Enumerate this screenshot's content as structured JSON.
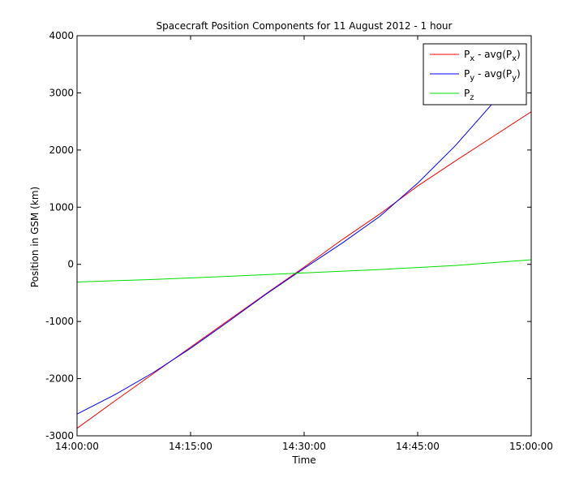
{
  "chart_data": {
    "type": "line",
    "title": "Spacecraft Position Components for 11 August 2012 - 1 hour",
    "xlabel": "Time",
    "ylabel": "Position in GSM (km)",
    "xlim": [
      0,
      60
    ],
    "ylim": [
      -3000,
      4000
    ],
    "x_ticks": [
      {
        "value": 0,
        "label": "14:00:00"
      },
      {
        "value": 15,
        "label": "14:15:00"
      },
      {
        "value": 30,
        "label": "14:30:00"
      },
      {
        "value": 45,
        "label": "14:45:00"
      },
      {
        "value": 60,
        "label": "15:00:00"
      }
    ],
    "y_ticks": [
      -3000,
      -2000,
      -1000,
      0,
      1000,
      2000,
      3000,
      4000
    ],
    "grid": false,
    "legend_position": "top-right",
    "series": [
      {
        "name": "Px - avg(Px)",
        "legend": {
          "base": "P",
          "sub1": "x",
          "mid": " - avg(P",
          "sub2": "x",
          "end": ")"
        },
        "color": "#ff0000",
        "x": [
          0,
          5,
          10,
          15,
          20,
          25,
          30,
          35,
          40,
          45,
          50,
          55,
          60
        ],
        "y": [
          -2870,
          -2390,
          -1920,
          -1450,
          -980,
          -510,
          -50,
          430,
          880,
          1370,
          1810,
          2240,
          2670
        ]
      },
      {
        "name": "Py - avg(Py)",
        "legend": {
          "base": "P",
          "sub1": "y",
          "mid": " - avg(P",
          "sub2": "y",
          "end": ")"
        },
        "color": "#0000ff",
        "x": [
          0,
          5,
          10,
          15,
          20,
          25,
          30,
          35,
          40,
          45,
          50,
          55,
          57
        ],
        "y": [
          -2620,
          -2280,
          -1900,
          -1470,
          -1000,
          -520,
          -70,
          370,
          840,
          1420,
          2080,
          2830,
          3160
        ]
      },
      {
        "name": "Pz",
        "legend": {
          "base": "P",
          "sub1": "z",
          "mid": "",
          "sub2": "",
          "end": ""
        },
        "color": "#00dd00",
        "x": [
          0,
          10,
          20,
          30,
          40,
          50,
          60
        ],
        "y": [
          -310,
          -265,
          -210,
          -150,
          -90,
          -20,
          80
        ]
      }
    ]
  }
}
